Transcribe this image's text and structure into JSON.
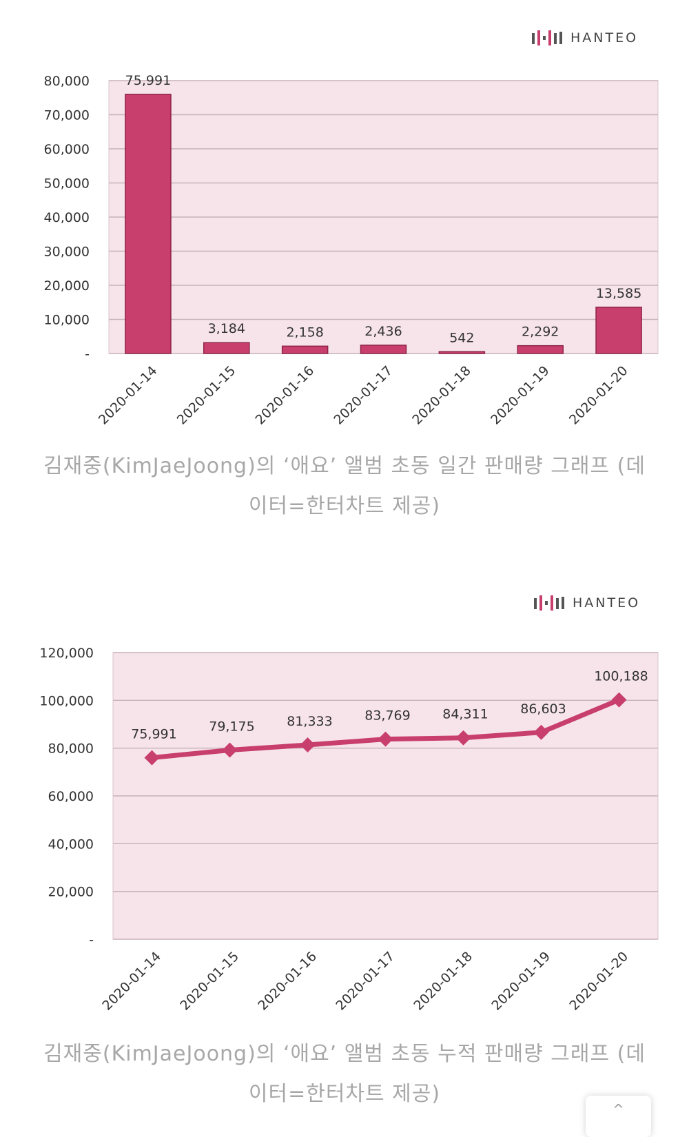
{
  "brand": {
    "logo_text": "HANTEO",
    "color": "#c83f6e"
  },
  "chart_data": [
    {
      "type": "bar",
      "categories": [
        "2020-01-14",
        "2020-01-15",
        "2020-01-16",
        "2020-01-17",
        "2020-01-18",
        "2020-01-19",
        "2020-01-20"
      ],
      "values": [
        75991,
        3184,
        2158,
        2436,
        542,
        2292,
        13585
      ],
      "data_labels": [
        "75,991",
        "3,184",
        "2,158",
        "2,436",
        "542",
        "2,292",
        "13,585"
      ],
      "ylim": [
        0,
        80000
      ],
      "yticks": [
        "-",
        "10,000",
        "20,000",
        "30,000",
        "40,000",
        "50,000",
        "60,000",
        "70,000",
        "80,000"
      ],
      "grid": true,
      "bar_color": "#c83f6e",
      "plot_background": "#f7e4ea"
    },
    {
      "type": "line",
      "categories": [
        "2020-01-14",
        "2020-01-15",
        "2020-01-16",
        "2020-01-17",
        "2020-01-18",
        "2020-01-19",
        "2020-01-20"
      ],
      "values": [
        75991,
        79175,
        81333,
        83769,
        84311,
        86603,
        100188
      ],
      "data_labels": [
        "75,991",
        "79,175",
        "81,333",
        "83,769",
        "84,311",
        "86,603",
        "100,188"
      ],
      "ylim": [
        0,
        120000
      ],
      "yticks": [
        "-",
        "20,000",
        "40,000",
        "60,000",
        "80,000",
        "100,000",
        "120,000"
      ],
      "grid": true,
      "marker": "diamond",
      "line_color": "#c83f6e",
      "plot_background": "#f7e4ea"
    }
  ],
  "captions": [
    "김재중(KimJaeJoong)의 ‘애요’ 앨범 초동 일간 판매량 그래프 (데이터=한터차트 제공)",
    "김재중(KimJaeJoong)의 ‘애요’ 앨범 초동 누적 판매량 그래프 (데이터=한터차트 제공)"
  ],
  "scroll_top": {
    "icon": "chevron-up-icon",
    "label": "^"
  }
}
